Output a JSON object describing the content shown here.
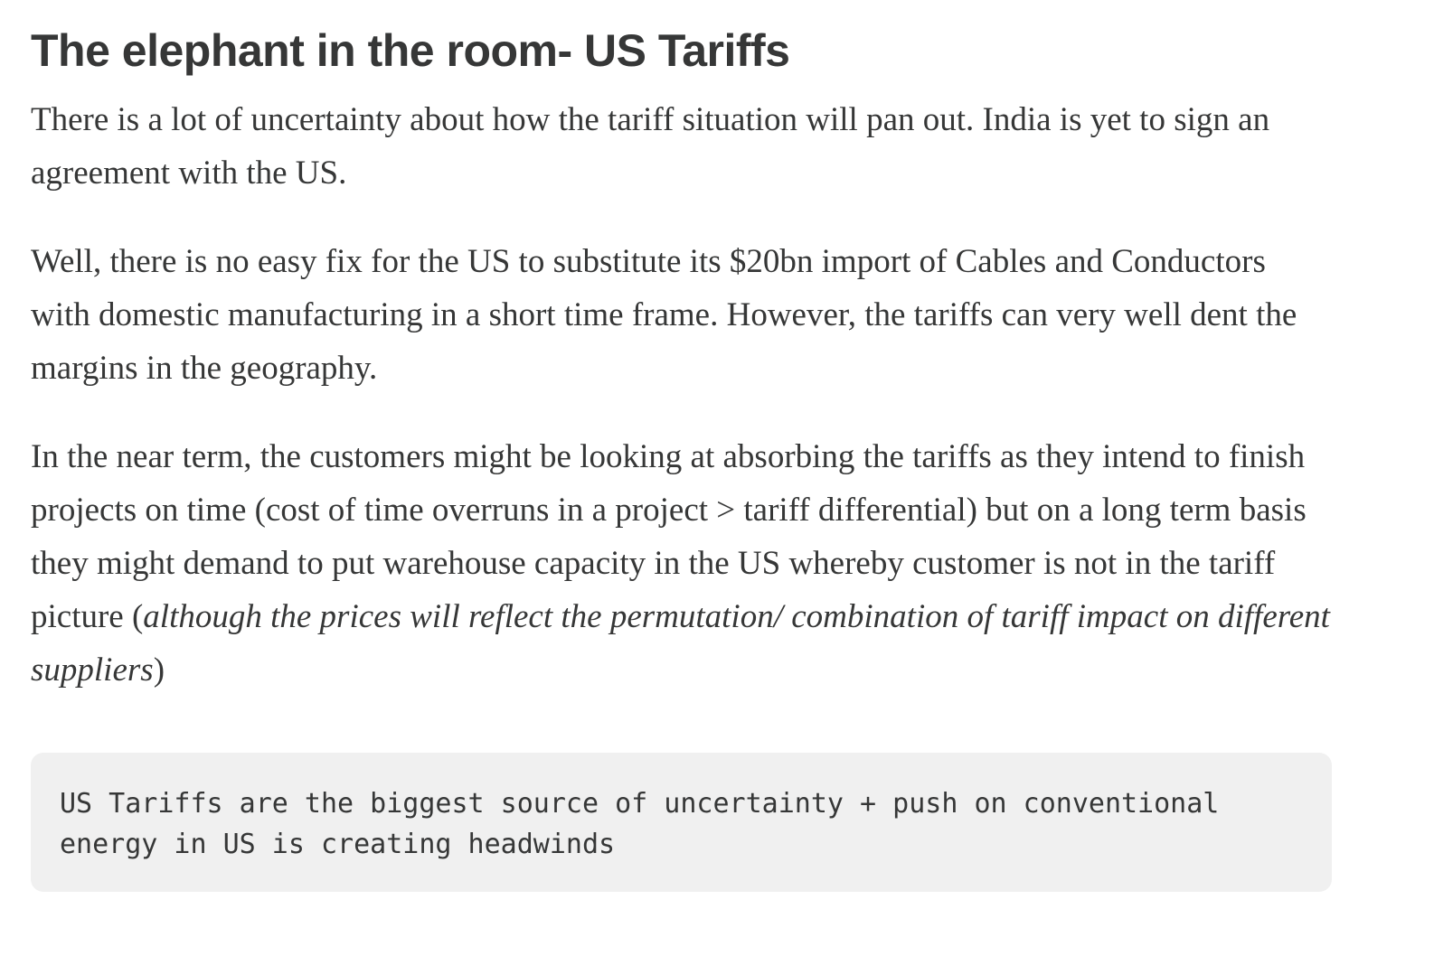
{
  "heading": "The elephant in the room- US Tariffs",
  "paragraphs": {
    "p1": "There is a lot of uncertainty about how the tariff situation will pan out. India is yet to sign an agreement with the US.",
    "p2": "Well, there is no easy fix for the US to substitute its $20bn import of Cables and Conductors with domestic manufacturing in a short time frame. However, the tariffs can very well dent the margins in the geography.",
    "p3_lead": "In the near term, the customers might be looking at absorbing the tariffs as they intend to finish projects on time (cost of time overruns in a project > tariff differential) but on a long term basis they might demand to put warehouse capacity in the US whereby customer is not in the tariff picture (",
    "p3_italic": "although the prices will reflect the permutation/ combination of tariff impact on different suppliers",
    "p3_tail": ")"
  },
  "code_block": {
    "text": "US Tariffs are the biggest source of uncertainty + push on conventional energy in US is creating headwinds"
  },
  "colors": {
    "text": "#363737",
    "code_background": "#f0f0f0",
    "page_background": "#ffffff"
  }
}
